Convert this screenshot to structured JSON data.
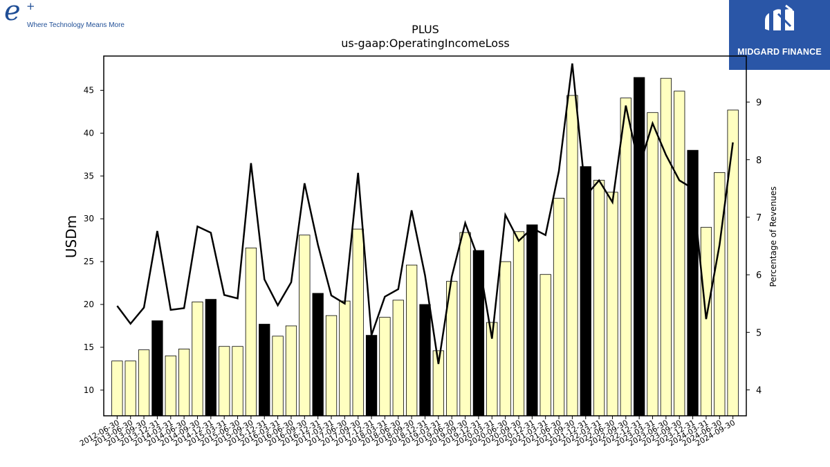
{
  "branding": {
    "left_logo_mark": "e",
    "left_logo_plus": "+",
    "left_tagline": "Where Technology Means More",
    "right_logo_name": "MIDGARD FINANCE"
  },
  "chart_data": {
    "type": "bar",
    "title": "PLUS",
    "subtitle": "us-gaap:OperatingIncomeLoss",
    "ylabel": "USDm",
    "y2label": "Percentage of Revenues",
    "ylim": [
      7,
      49
    ],
    "y2lim": [
      3.55,
      9.8
    ],
    "yticks": [
      10,
      15,
      20,
      25,
      30,
      35,
      40,
      45
    ],
    "y2ticks": [
      4,
      5,
      6,
      7,
      8,
      9
    ],
    "categories": [
      "2012-06-30",
      "2013-06-30",
      "2013-09-30",
      "2013-12-31",
      "2014-03-31",
      "2014-06-30",
      "2014-09-30",
      "2014-12-31",
      "2015-03-31",
      "2015-06-30",
      "2015-09-30",
      "2015-12-31",
      "2016-03-31",
      "2016-06-30",
      "2016-09-30",
      "2016-12-31",
      "2017-03-31",
      "2017-06-30",
      "2017-09-30",
      "2017-12-31",
      "2018-03-31",
      "2018-06-30",
      "2018-09-30",
      "2018-12-31",
      "2019-03-31",
      "2019-06-30",
      "2019-09-30",
      "2019-12-31",
      "2020-03-31",
      "2020-06-30",
      "2020-09-30",
      "2020-12-31",
      "2021-03-31",
      "2021-06-30",
      "2021-09-30",
      "2021-12-31",
      "2022-03-31",
      "2022-06-30",
      "2022-09-30",
      "2022-12-31",
      "2023-03-31",
      "2023-06-30",
      "2023-09-30",
      "2023-12-31",
      "2024-03-31",
      "2024-06-30",
      "2024-09-30"
    ],
    "series": [
      {
        "kind": "bar",
        "axis": "left",
        "values": [
          13.4,
          13.4,
          14.7,
          18.1,
          14.0,
          14.8,
          20.3,
          20.6,
          15.1,
          15.1,
          26.6,
          17.7,
          16.3,
          17.5,
          28.1,
          21.3,
          18.7,
          20.4,
          28.8,
          16.4,
          18.5,
          20.5,
          24.6,
          20.0,
          14.6,
          22.7,
          28.4,
          26.3,
          17.9,
          25.0,
          28.5,
          29.3,
          23.5,
          32.4,
          44.4,
          36.1,
          34.5,
          33.1,
          44.1,
          46.5,
          42.4,
          46.4,
          44.9,
          38.0,
          29.0,
          35.4,
          42.7
        ],
        "highlight_every": 4,
        "highlight_start": 3,
        "highlight_color": "#000000",
        "fill_color": "#ffffc0"
      },
      {
        "kind": "line",
        "axis": "right",
        "values": [
          5.46,
          5.15,
          5.43,
          6.76,
          5.39,
          5.42,
          6.84,
          6.73,
          5.65,
          5.59,
          7.94,
          5.92,
          5.47,
          5.87,
          7.59,
          6.52,
          5.64,
          5.5,
          7.77,
          4.95,
          5.62,
          5.75,
          7.12,
          5.99,
          4.45,
          5.97,
          6.9,
          6.27,
          4.89,
          7.04,
          6.59,
          6.81,
          6.69,
          7.8,
          9.67,
          7.37,
          7.64,
          7.26,
          8.94,
          7.87,
          8.63,
          8.08,
          7.64,
          7.5,
          5.23,
          6.52,
          8.3
        ],
        "color": "#000000"
      }
    ],
    "grid": false
  }
}
